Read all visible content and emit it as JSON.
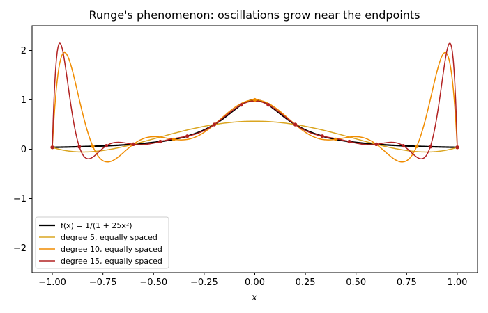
{
  "chart_data": {
    "type": "line",
    "title": "Runge's phenomenon: oscillations grow near the endpoints",
    "xlabel": "x",
    "ylabel": "",
    "xlim": [
      -1.1,
      1.1
    ],
    "ylim": [
      -2.5,
      2.5
    ],
    "xticks": [
      -1.0,
      -0.75,
      -0.5,
      -0.25,
      0.0,
      0.25,
      0.5,
      0.75,
      1.0
    ],
    "xtick_labels": [
      "−1.00",
      "−0.75",
      "−0.50",
      "−0.25",
      "0.00",
      "0.25",
      "0.50",
      "0.75",
      "1.00"
    ],
    "yticks": [
      -2,
      -1,
      0,
      1,
      2
    ],
    "ytick_labels": [
      "−2",
      "−1",
      "0",
      "1",
      "2"
    ],
    "grid": false,
    "legend_position": "lower-left",
    "series": [
      {
        "name": "f(x) = 1/(1 + 25x²)",
        "kind": "function",
        "color": "#000000",
        "width": 2.2
      },
      {
        "name": "degree 5, equally spaced",
        "kind": "interp",
        "degree": 5,
        "color": "#daa520",
        "width": 1.5
      },
      {
        "name": "degree 10, equally spaced",
        "kind": "interp",
        "degree": 10,
        "color": "#f08c00",
        "width": 1.5
      },
      {
        "name": "degree 15, equally spaced",
        "kind": "interp",
        "degree": 15,
        "color": "#b22222",
        "width": 1.5
      }
    ]
  }
}
